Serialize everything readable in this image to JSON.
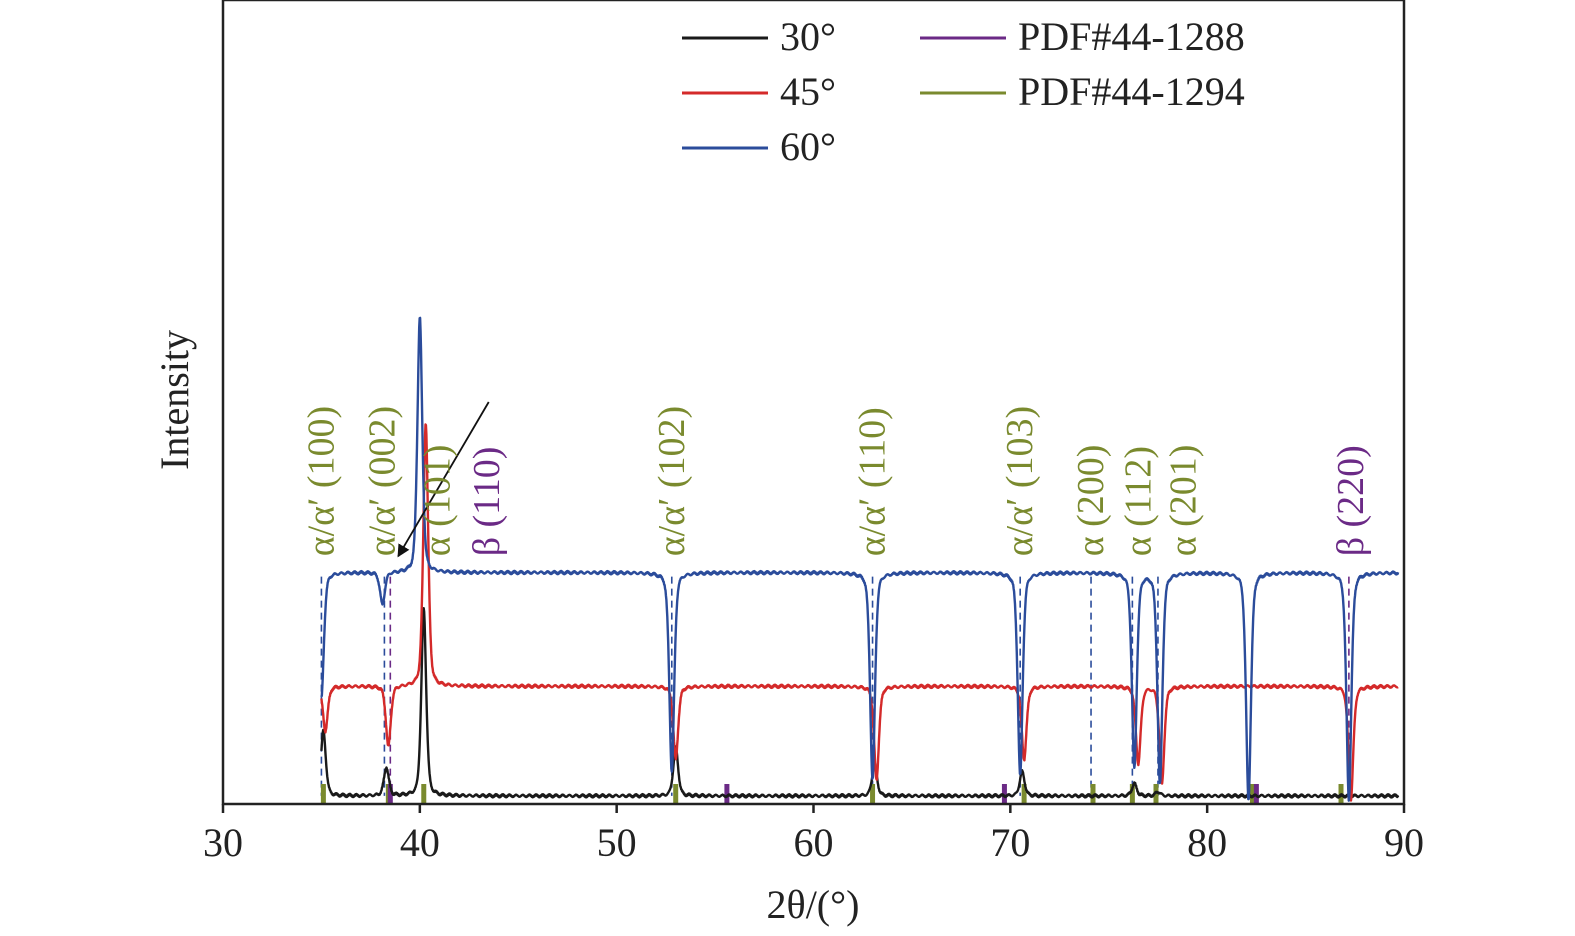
{
  "chart_data": {
    "type": "line",
    "xlabel": "2θ/(°)",
    "ylabel": "Intensity",
    "xlim": [
      30,
      90
    ],
    "xticks": [
      "30",
      "40",
      "50",
      "60",
      "70",
      "80",
      "90"
    ],
    "grid": false,
    "legend": {
      "placement": "top-right",
      "entries": [
        {
          "label": "30°",
          "color": "#1a1a1a"
        },
        {
          "label": "45°",
          "color": "#d42a2a"
        },
        {
          "label": "60°",
          "color": "#2b4c9b"
        },
        {
          "label": "PDF#44-1288",
          "color": "#6b2a86"
        },
        {
          "label": "PDF#44-1294",
          "color": "#7a8a2e"
        }
      ]
    },
    "series": [
      {
        "name": "30°",
        "color": "#1a1a1a",
        "baseline": 0.02,
        "peaks": [
          [
            35.1,
            0.18
          ],
          [
            38.3,
            0.09
          ],
          [
            40.2,
            0.48
          ],
          [
            53.0,
            0.14
          ],
          [
            63.1,
            0.1
          ],
          [
            70.6,
            0.08
          ],
          [
            76.3,
            0.05
          ],
          [
            77.5,
            0.03
          ]
        ]
      },
      {
        "name": "45°",
        "color": "#d42a2a",
        "baseline": 0.29,
        "peaks": [
          [
            35.2,
            0.18
          ],
          [
            38.4,
            0.14
          ],
          [
            40.3,
            0.94
          ],
          [
            53.0,
            0.11
          ],
          [
            63.2,
            0.06
          ],
          [
            70.7,
            0.11
          ],
          [
            76.5,
            0.1
          ],
          [
            77.7,
            0.05
          ],
          [
            87.3,
            0.01
          ]
        ]
      },
      {
        "name": "60°",
        "color": "#2b4c9b",
        "baseline": 0.57,
        "peaks": [
          [
            35.0,
            0.26
          ],
          [
            38.1,
            0.49
          ],
          [
            40.0,
            1.2
          ],
          [
            52.8,
            0.08
          ],
          [
            63.0,
            0.06
          ],
          [
            70.5,
            0.07
          ],
          [
            76.3,
            0.09
          ],
          [
            77.6,
            0.05
          ],
          [
            82.1,
            0.01
          ],
          [
            87.2,
            0.01
          ]
        ]
      }
    ],
    "reference_sticks": [
      {
        "name": "PDF#44-1294",
        "color": "#7a8a2e",
        "x": [
          35.1,
          38.4,
          40.2,
          53.0,
          63.0,
          70.7,
          74.2,
          76.2,
          77.4,
          82.3,
          86.8
        ]
      },
      {
        "name": "PDF#44-1288",
        "color": "#6b2a86",
        "x": [
          38.5,
          55.6,
          69.7,
          82.5
        ]
      }
    ],
    "guide_lines": [
      {
        "x": 35.0,
        "color": "#2b4c9b"
      },
      {
        "x": 38.2,
        "color": "#2b4c9b"
      },
      {
        "x": 38.5,
        "color": "#6b2a86"
      },
      {
        "x": 52.8,
        "color": "#2b4c9b"
      },
      {
        "x": 63.0,
        "color": "#2b4c9b"
      },
      {
        "x": 70.5,
        "color": "#2b4c9b"
      },
      {
        "x": 74.1,
        "color": "#2b4c9b"
      },
      {
        "x": 76.2,
        "color": "#2b4c9b"
      },
      {
        "x": 77.5,
        "color": "#2b4c9b"
      },
      {
        "x": 87.2,
        "color": "#6b2a86"
      }
    ],
    "annotations": [
      {
        "text": "α/α′ (100)",
        "x": 35.0,
        "color": "#7a8a2e"
      },
      {
        "text": "α/α′ (002)",
        "x": 38.1,
        "color": "#7a8a2e"
      },
      {
        "text": "α (101)",
        "x": 40.9,
        "color": "#7a8a2e"
      },
      {
        "text": "β (110)",
        "x": 43.4,
        "color": "#6b2a86"
      },
      {
        "text": "α/α′ (102)",
        "x": 52.8,
        "color": "#7a8a2e"
      },
      {
        "text": "α/α′ (110)",
        "x": 63.0,
        "color": "#7a8a2e"
      },
      {
        "text": "α/α′ (103)",
        "x": 70.5,
        "color": "#7a8a2e"
      },
      {
        "text": "α (200)",
        "x": 74.1,
        "color": "#7a8a2e"
      },
      {
        "text": "α (112)",
        "x": 76.5,
        "color": "#7a8a2e"
      },
      {
        "text": "α (201)",
        "x": 78.8,
        "color": "#7a8a2e"
      },
      {
        "text": "β (220)",
        "x": 87.3,
        "color": "#6b2a86"
      }
    ]
  }
}
